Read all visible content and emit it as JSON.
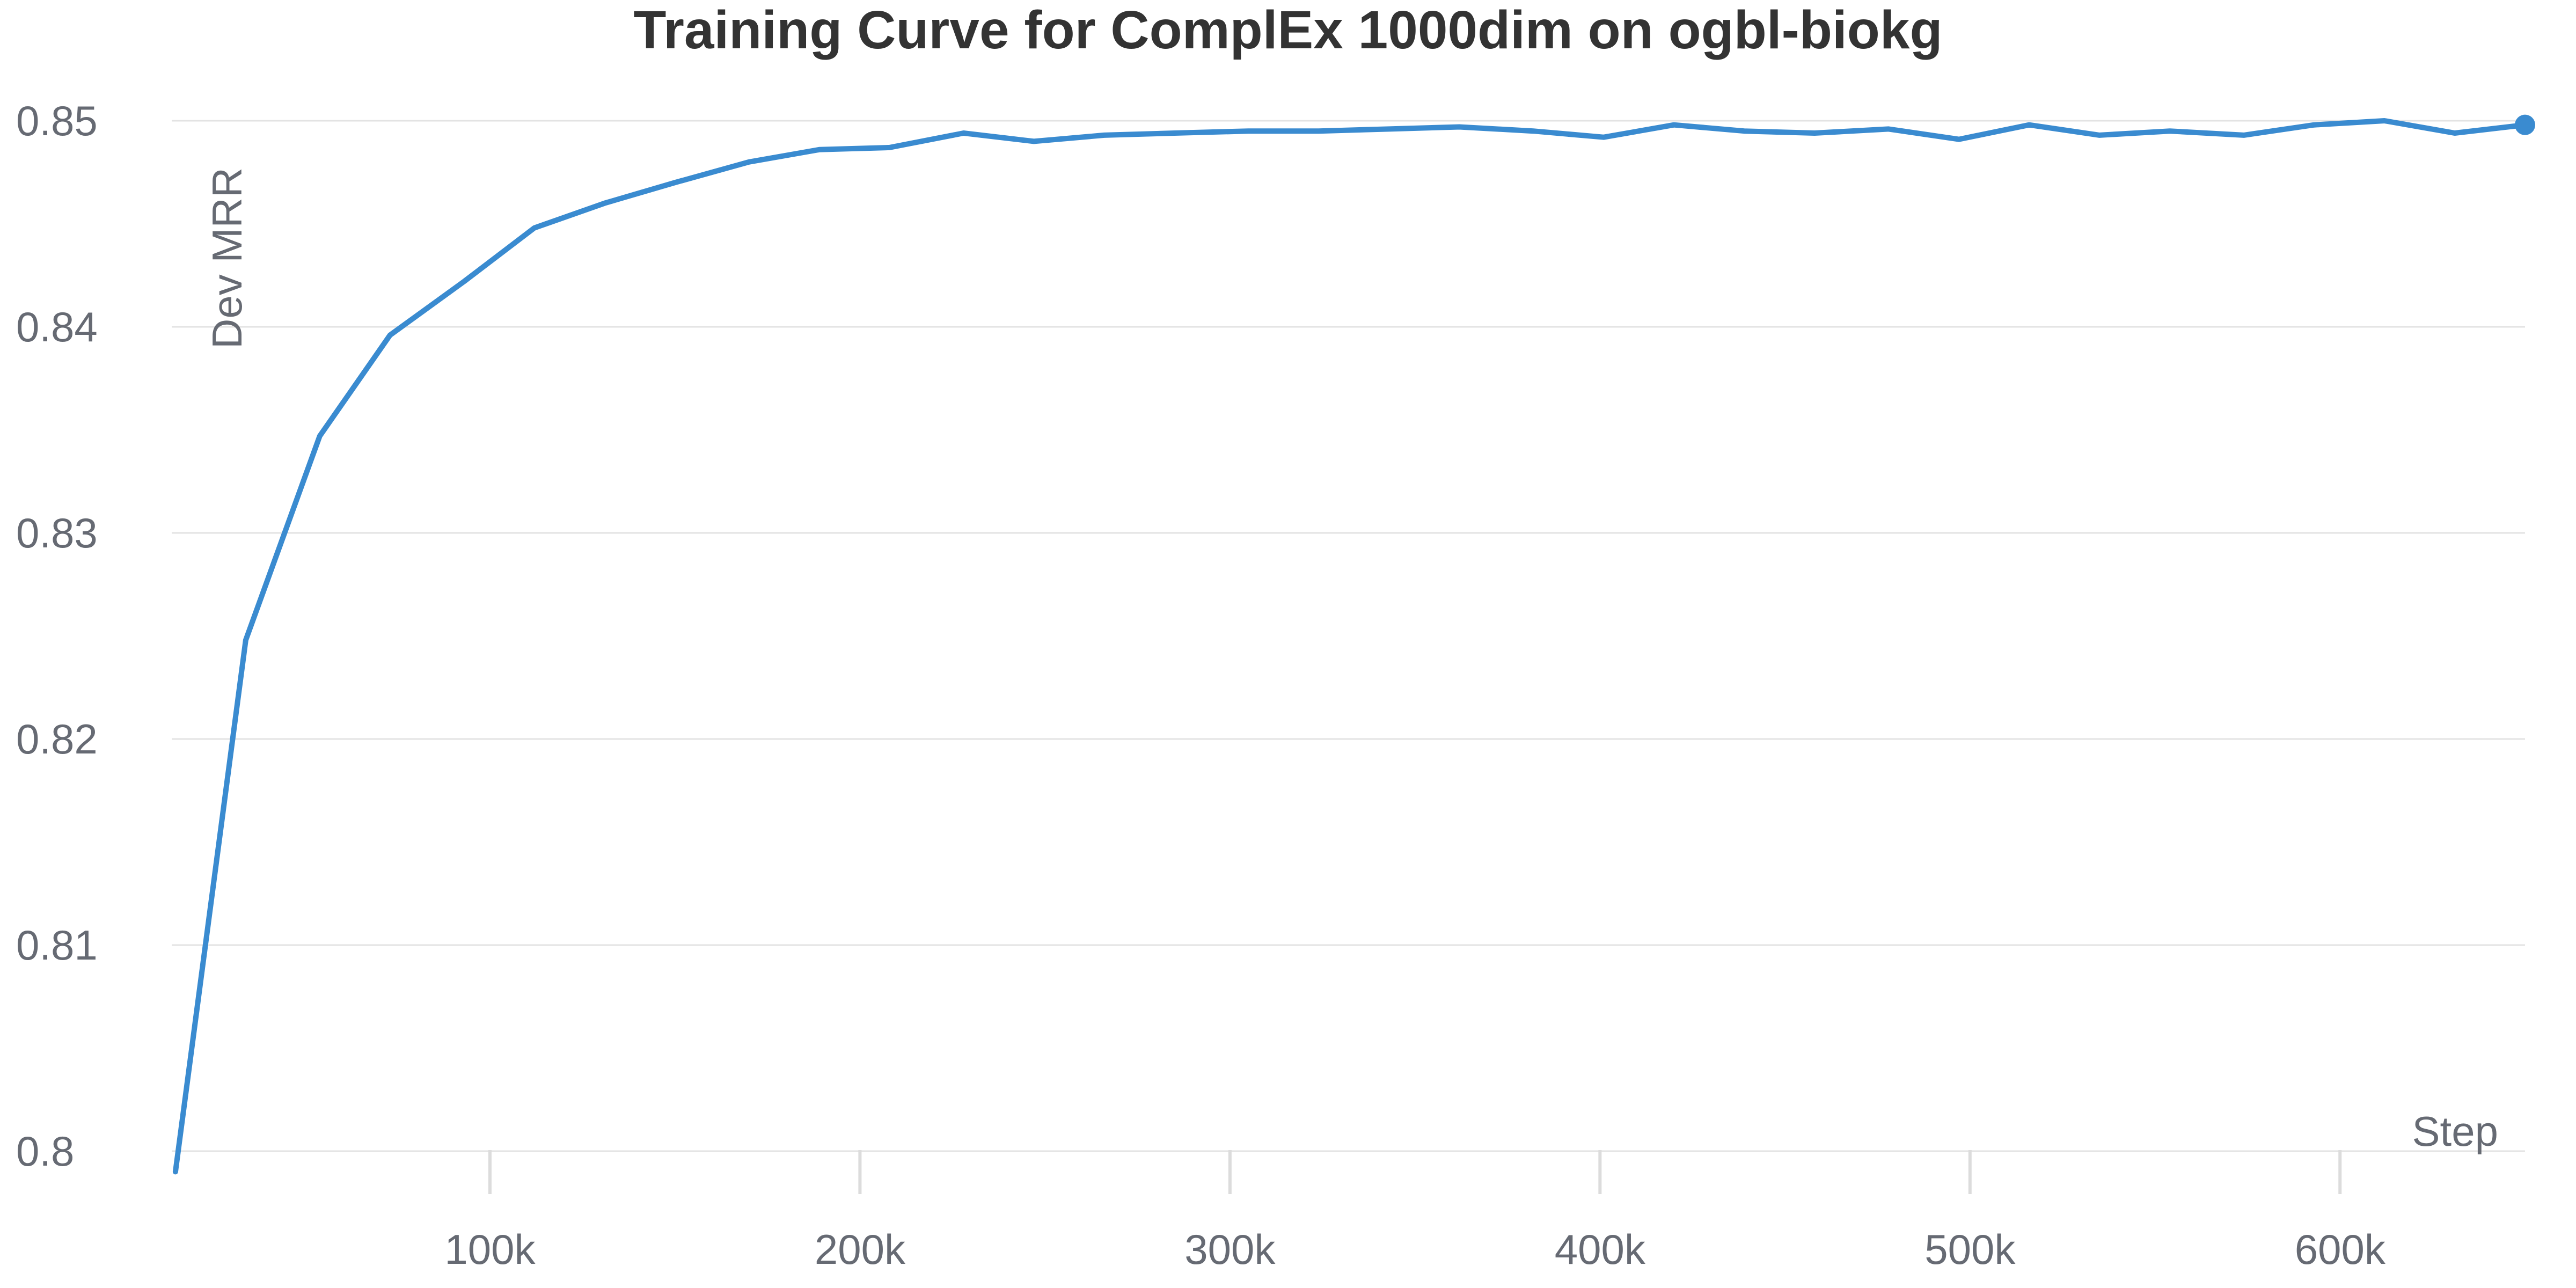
{
  "chart_data": {
    "type": "line",
    "title": "Training Curve for ComplEx 1000dim on ogbl-biokg",
    "xlabel": "Step",
    "ylabel": "Dev MRR",
    "xlim": [
      14000,
      650000
    ],
    "ylim": [
      0.8,
      0.85
    ],
    "x_ticks": [
      100000,
      200000,
      300000,
      400000,
      500000,
      600000
    ],
    "x_tick_labels": [
      "100k",
      "200k",
      "300k",
      "400k",
      "500k",
      "600k"
    ],
    "y_ticks": [
      0.8,
      0.81,
      0.82,
      0.83,
      0.84,
      0.85
    ],
    "y_tick_labels": [
      "0.8",
      "0.81",
      "0.82",
      "0.83",
      "0.84",
      "0.85"
    ],
    "grid": true,
    "color": "#3a8bd0",
    "series": [
      {
        "x": [
          15000,
          34000,
          54000,
          73000,
          93000,
          112000,
          131000,
          150000,
          170000,
          189000,
          208000,
          228000,
          247000,
          266000,
          285000,
          305000,
          324000,
          343000,
          362000,
          382000,
          401000,
          420000,
          439000,
          458000,
          478000,
          497000,
          516000,
          535000,
          554000,
          574000,
          593000,
          612000,
          631000,
          650000
        ],
        "y": [
          0.799,
          0.8248,
          0.8347,
          0.8396,
          0.8422,
          0.8448,
          0.846,
          0.847,
          0.848,
          0.8486,
          0.8487,
          0.8494,
          0.849,
          0.8493,
          0.8494,
          0.8495,
          0.8495,
          0.8496,
          0.8497,
          0.8495,
          0.8492,
          0.8498,
          0.8495,
          0.8494,
          0.8496,
          0.8491,
          0.8498,
          0.8493,
          0.8495,
          0.8493,
          0.8498,
          0.85,
          0.8494,
          0.8498
        ]
      }
    ]
  }
}
